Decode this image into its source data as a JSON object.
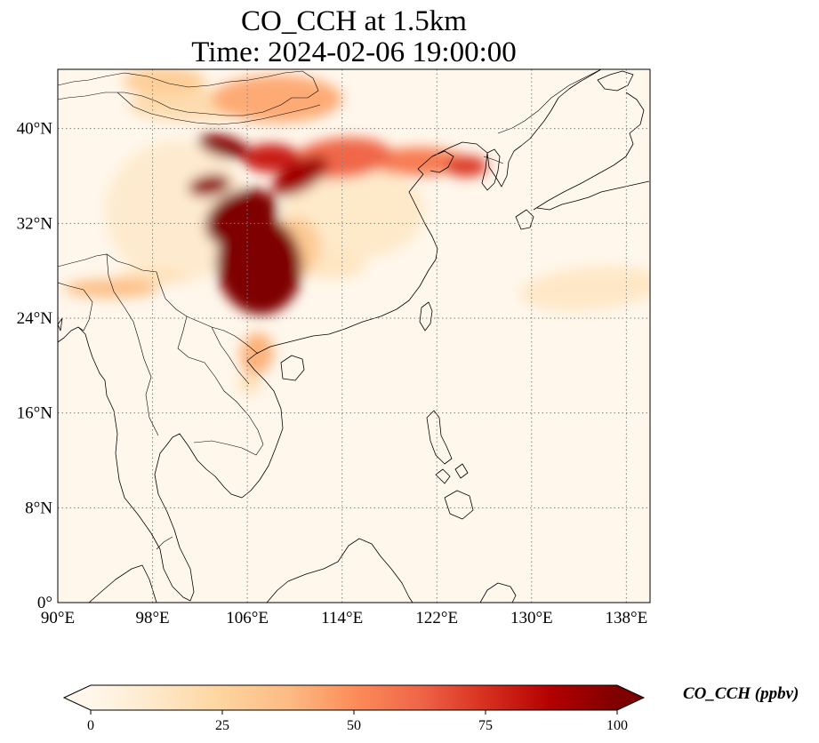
{
  "figure": {
    "title_line_1": "CO_CCH at 1.5km",
    "title_line_2": "Time: 2024-02-06 19:00:00"
  },
  "map": {
    "projection": "PlateCarree",
    "extent": {
      "lon": [
        90,
        140
      ],
      "lat": [
        0,
        45
      ]
    },
    "gridlines": {
      "style": "dotted",
      "color": "#808080"
    },
    "coastline_color": "#000000",
    "lon_ticks": [
      {
        "value": 90,
        "label": "90°E"
      },
      {
        "value": 98,
        "label": "98°E"
      },
      {
        "value": 106,
        "label": "106°E"
      },
      {
        "value": 114,
        "label": "114°E"
      },
      {
        "value": 122,
        "label": "122°E"
      },
      {
        "value": 130,
        "label": "130°E"
      },
      {
        "value": 138,
        "label": "138°E"
      }
    ],
    "lat_ticks": [
      {
        "value": 0,
        "label": "0°"
      },
      {
        "value": 8,
        "label": "8°N"
      },
      {
        "value": 16,
        "label": "16°N"
      },
      {
        "value": 24,
        "label": "24°N"
      },
      {
        "value": 32,
        "label": "32°N"
      },
      {
        "value": 40,
        "label": "40°N"
      }
    ]
  },
  "colorbar": {
    "label": "CO_CCH (ppbv)",
    "colormap": "OrRd",
    "range": [
      0,
      100
    ],
    "extend": "both",
    "ticks": [
      {
        "value": 0,
        "label": "0"
      },
      {
        "value": 25,
        "label": "25"
      },
      {
        "value": 50,
        "label": "50"
      },
      {
        "value": 75,
        "label": "75"
      },
      {
        "value": 100,
        "label": "100"
      }
    ],
    "stops": [
      {
        "value": 0,
        "color": "#fff7ec"
      },
      {
        "value": 12.5,
        "color": "#fee8c8"
      },
      {
        "value": 25,
        "color": "#fdd49e"
      },
      {
        "value": 37.5,
        "color": "#fdbb84"
      },
      {
        "value": 50,
        "color": "#fc8d59"
      },
      {
        "value": 62.5,
        "color": "#ef6548"
      },
      {
        "value": 75,
        "color": "#d7301f"
      },
      {
        "value": 87.5,
        "color": "#b30000"
      },
      {
        "value": 100,
        "color": "#7f0000"
      }
    ]
  },
  "plumes": [
    {
      "lon": 107,
      "lat": 28.5,
      "rlon": 3.6,
      "rlat": 4.2,
      "value": 100,
      "rot": -8
    },
    {
      "lon": 105.5,
      "lat": 32.5,
      "rlon": 3.2,
      "rlat": 2.2,
      "value": 100,
      "rot": -25
    },
    {
      "lon": 102.8,
      "lat": 35.2,
      "rlon": 1.8,
      "rlat": 0.9,
      "value": 95,
      "rot": -10
    },
    {
      "lon": 110.5,
      "lat": 36,
      "rlon": 2.6,
      "rlat": 1.2,
      "value": 92,
      "rot": -30
    },
    {
      "lon": 104,
      "lat": 38.5,
      "rlon": 2.2,
      "rlat": 0.9,
      "value": 98,
      "rot": 15
    },
    {
      "lon": 108,
      "lat": 37.5,
      "rlon": 2.4,
      "rlat": 1.2,
      "value": 80,
      "rot": 0
    },
    {
      "lon": 114,
      "lat": 37.5,
      "rlon": 4.2,
      "rlat": 1.7,
      "value": 62,
      "rot": -5
    },
    {
      "lon": 120.5,
      "lat": 37.2,
      "rlon": 4,
      "rlat": 1.2,
      "value": 55,
      "rot": 0
    },
    {
      "lon": 124.5,
      "lat": 36.8,
      "rlon": 1.8,
      "rlat": 0.9,
      "value": 72,
      "rot": 0
    },
    {
      "lon": 101,
      "lat": 42,
      "rlon": 5,
      "rlat": 1.4,
      "value": 20,
      "rot": 0
    },
    {
      "lon": 108.5,
      "lat": 42.5,
      "rlon": 5.5,
      "rlat": 2,
      "value": 42,
      "rot": 0
    },
    {
      "lon": 99,
      "lat": 44,
      "rlon": 3.5,
      "rlat": 1.2,
      "value": 28,
      "rot": 0
    },
    {
      "lon": 110,
      "lat": 30,
      "rlon": 2.2,
      "rlat": 2.5,
      "value": 30,
      "rot": 0
    },
    {
      "lon": 106.8,
      "lat": 21,
      "rlon": 1.4,
      "rlat": 1.8,
      "value": 40,
      "rot": 10
    },
    {
      "lon": 106.2,
      "lat": 18.5,
      "rlon": 0.9,
      "rlat": 0.9,
      "value": 18,
      "rot": 0
    },
    {
      "lon": 94.5,
      "lat": 26.5,
      "rlon": 4,
      "rlat": 0.8,
      "value": 35,
      "rot": 0
    },
    {
      "lon": 98,
      "lat": 27.5,
      "rlon": 3,
      "rlat": 0.6,
      "value": 18,
      "rot": 0
    },
    {
      "lon": 113,
      "lat": 28.5,
      "rlon": 3,
      "rlat": 1.2,
      "value": 14,
      "rot": 0
    },
    {
      "lon": 135,
      "lat": 26.5,
      "rlon": 6,
      "rlat": 1.8,
      "value": 13,
      "rot": -5
    },
    {
      "lon": 100,
      "lat": 33,
      "rlon": 6,
      "rlat": 6,
      "value": 10,
      "rot": 0
    },
    {
      "lon": 115,
      "lat": 33,
      "rlon": 6,
      "rlat": 4,
      "value": 12,
      "rot": 0
    }
  ]
}
